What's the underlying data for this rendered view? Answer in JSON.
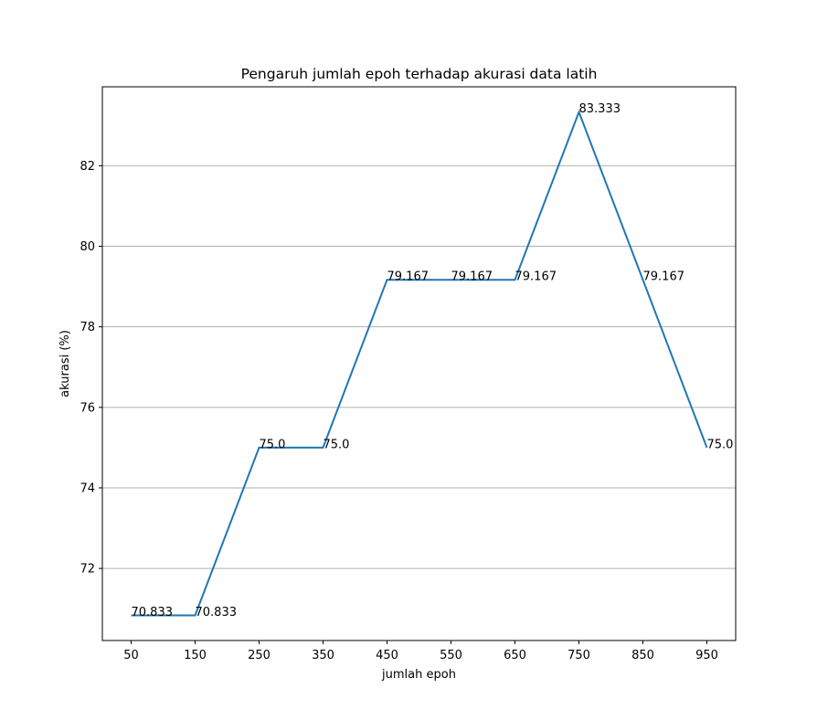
{
  "chart_data": {
    "type": "line",
    "title": "Pengaruh jumlah epoh terhadap akurasi data latih",
    "xlabel": "jumlah epoh",
    "ylabel": "akurasi (%)",
    "x": [
      50,
      150,
      250,
      350,
      450,
      550,
      650,
      750,
      850,
      950
    ],
    "x_ticks": [
      50,
      150,
      250,
      350,
      450,
      550,
      650,
      750,
      850,
      950
    ],
    "y_ticks": [
      72,
      74,
      76,
      78,
      80,
      82
    ],
    "xlim": [
      5,
      995
    ],
    "ylim": [
      70.21,
      83.96
    ],
    "grid": "y",
    "series": [
      {
        "color": "#1f77b4",
        "values": [
          70.833,
          70.833,
          75.0,
          75.0,
          79.167,
          79.167,
          79.167,
          83.333,
          79.167,
          75.0
        ],
        "labels": [
          "70.833",
          "70.833",
          "75.0",
          "75.0",
          "79.167",
          "79.167",
          "79.167",
          "83.333",
          "79.167",
          "75.0"
        ]
      }
    ]
  }
}
